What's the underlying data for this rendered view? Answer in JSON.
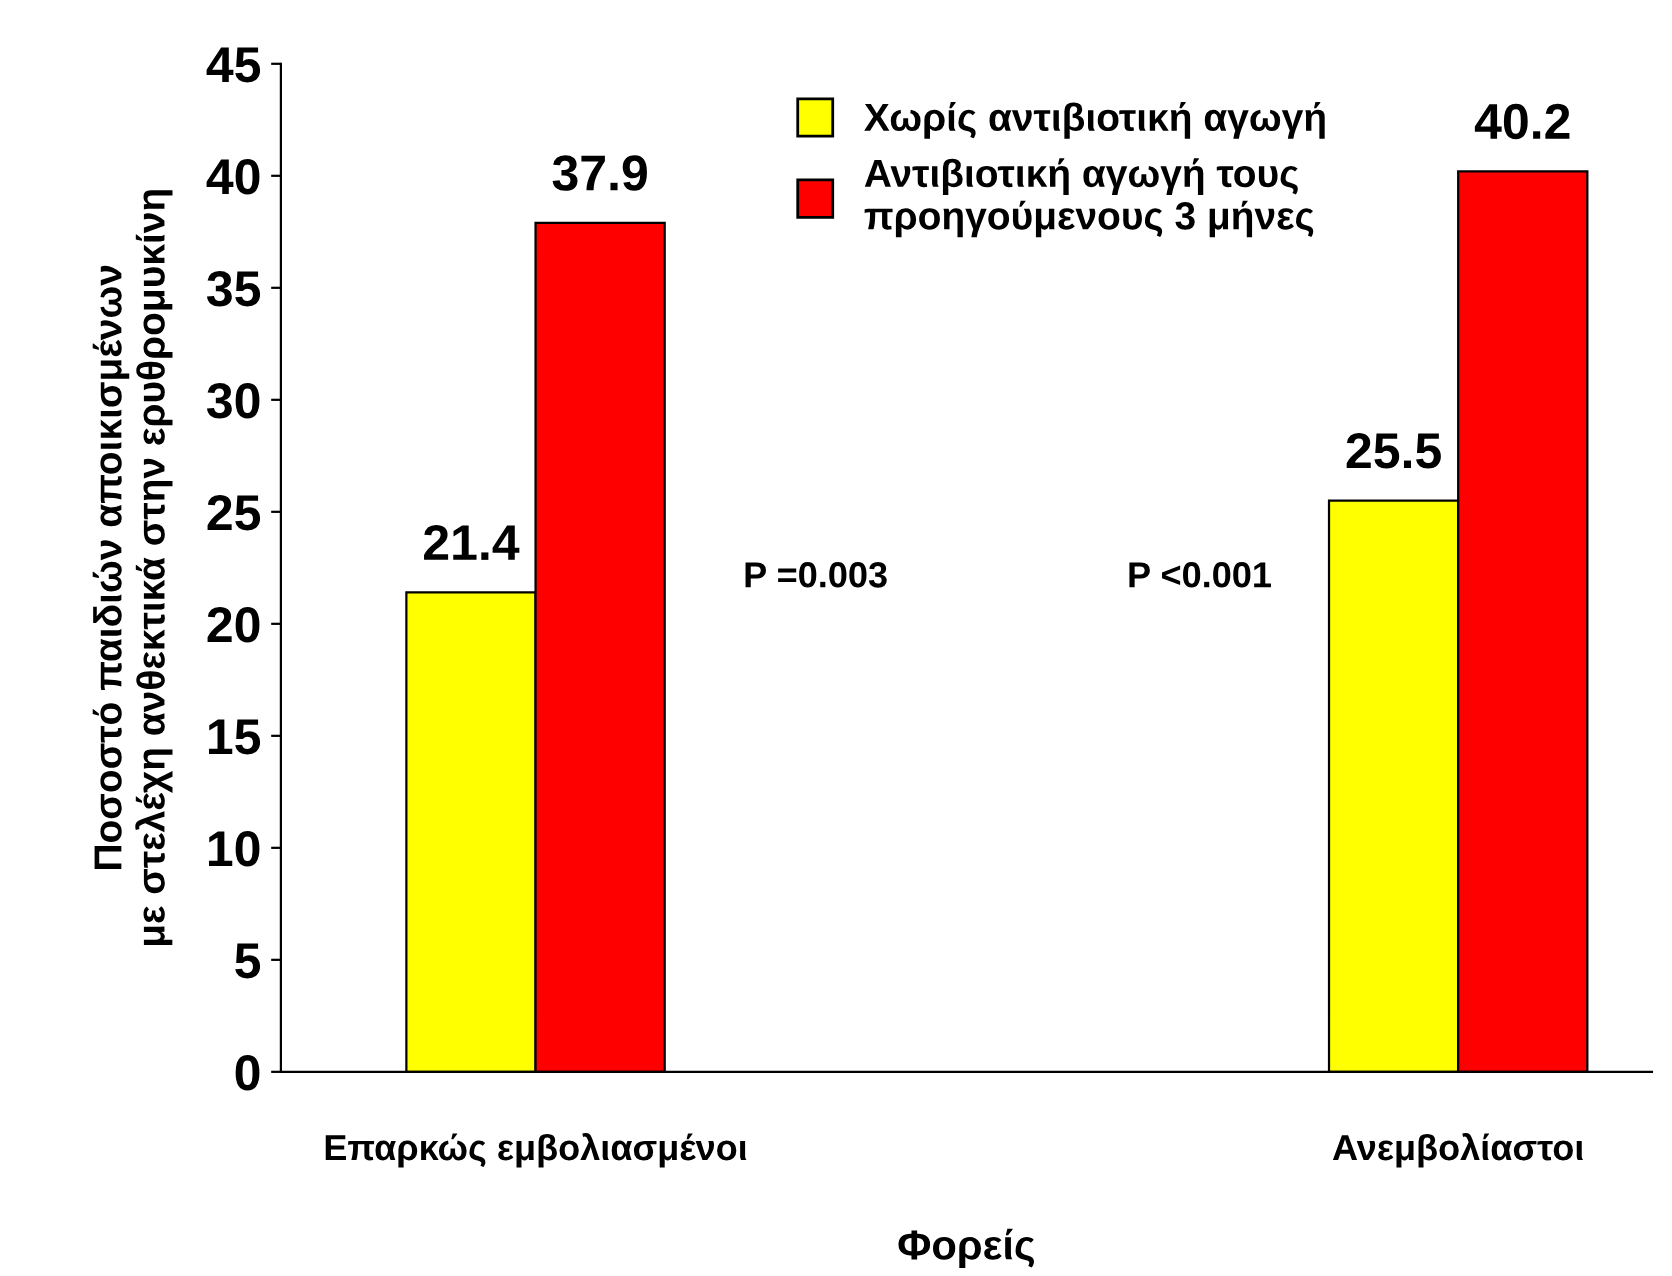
{
  "chart_data": {
    "type": "bar",
    "xlabel": "Φορείς",
    "ylabel": "Ποσοστό παιδιών αποικισμένων\nμε στελέχη ανθεκτικά στην ερυθρομυκίνη",
    "categories": [
      "Επαρκώς εμβολιασμένοι",
      "Ανεμβολίαστοι"
    ],
    "series": [
      {
        "name": "Χωρίς αντιβιοτική αγωγή",
        "color": "#ffff00",
        "values": [
          21.4,
          25.5
        ]
      },
      {
        "name": "Αντιβιοτική αγωγή τους\nπροηγούμενους 3 μήνες",
        "color": "#ff0000",
        "values": [
          37.9,
          40.2
        ]
      }
    ],
    "ylim": [
      0,
      45
    ],
    "yticks": [
      0,
      5,
      10,
      15,
      20,
      25,
      30,
      35,
      40,
      45
    ],
    "data_labels": true,
    "legend": "top",
    "grid": false,
    "annotations": [
      "P =0.003",
      "P <0.001"
    ]
  }
}
